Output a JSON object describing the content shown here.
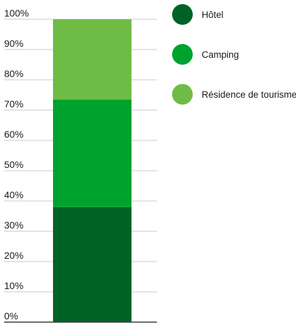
{
  "chart_data": {
    "type": "bar",
    "stacked": true,
    "percent": true,
    "title": "",
    "xlabel": "",
    "ylabel": "",
    "ylim": [
      0,
      100
    ],
    "yticks": [
      0,
      10,
      20,
      30,
      40,
      50,
      60,
      70,
      80,
      90,
      100
    ],
    "ytick_labels": [
      "0%",
      "10%",
      "20%",
      "30%",
      "40%",
      "50%",
      "60%",
      "70%",
      "80%",
      "90%",
      "100%"
    ],
    "grid": true,
    "legend_position": "right",
    "categories": [
      ""
    ],
    "series": [
      {
        "name": "Hôtel",
        "values": [
          38
        ],
        "color": "#006326"
      },
      {
        "name": "Camping",
        "values": [
          35.5
        ],
        "color": "#00a22e"
      },
      {
        "name": "Résidence de tourisme",
        "values": [
          26.5
        ],
        "color": "#6ebc46"
      }
    ]
  },
  "colors": {
    "grid": "#c8c8c8",
    "axis": "#3a3a3a",
    "text": "#1a1a1a"
  }
}
